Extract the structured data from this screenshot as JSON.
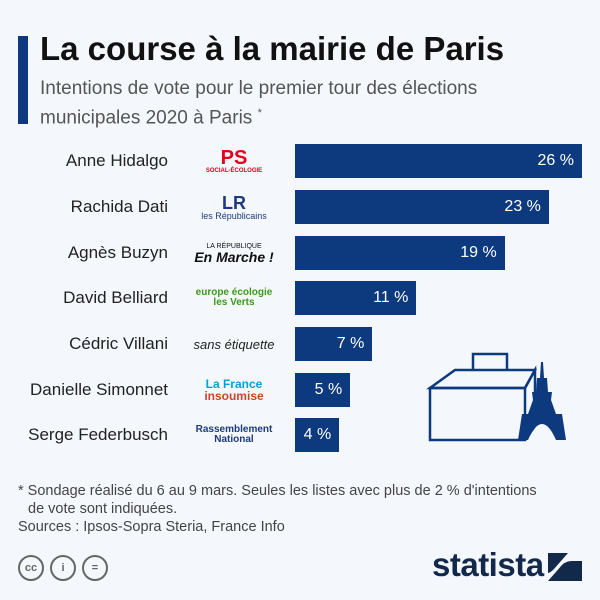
{
  "header": {
    "title": "La course à la mairie de Paris",
    "subtitle": "Intentions de vote pour le premier tour des élections municipales 2020 à Paris",
    "subtitle_mark": "*"
  },
  "chart_data": {
    "type": "bar",
    "orientation": "horizontal",
    "categories": [
      "Anne Hidalgo",
      "Rachida Dati",
      "Agnès Buzyn",
      "David Belliard",
      "Cédric Villani",
      "Danielle Simonnet",
      "Serge Federbusch"
    ],
    "values": [
      26,
      23,
      19,
      11,
      7,
      5,
      4
    ],
    "labels": [
      "26 %",
      "23 %",
      "19 %",
      "11 %",
      "7 %",
      "5 %",
      "4 %"
    ],
    "parties": [
      {
        "line1": "PS",
        "line2": "SOCIAL-ÉCOLOGIE"
      },
      {
        "line1": "LR",
        "line2": "les Républicains"
      },
      {
        "line1": "LA RÉPUBLIQUE",
        "line2": "En Marche !"
      },
      {
        "line1": "europe écologie",
        "line2": "les Verts"
      },
      {
        "line1": "sans étiquette",
        "line2": ""
      },
      {
        "line1": "La France",
        "line2": "insoumise"
      },
      {
        "line1": "Rassemblement",
        "line2": "National"
      }
    ],
    "xlim": [
      0,
      26
    ],
    "unit": "%",
    "bar_color": "#0d3a7e"
  },
  "footer": {
    "note_line1": "* Sondage réalisé du 6 au 9 mars. Seules les listes avec plus de 2 % d'intentions",
    "note_line2": "de vote sont indiquées.",
    "sources": "Sources : Ipsos-Sopra Steria, France Info",
    "license_icons": [
      "cc-icon",
      "by-icon",
      "nd-icon"
    ],
    "brand": "statista"
  }
}
